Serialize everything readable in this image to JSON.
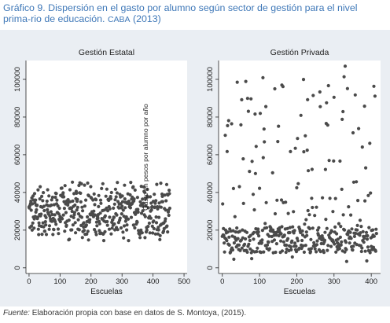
{
  "caption": {
    "label": "Gráfico 9.",
    "text": "Dispersión en el gasto por alumno según sector de gestión para el nivel prima-rio de educación.",
    "place": "CABA",
    "year": "(2013)"
  },
  "source": {
    "prefix": "Fuente:",
    "text": "Elaboración propia con base en datos de S. Montoya, (2015)."
  },
  "colors": {
    "points": "#4a4a4a",
    "panel_background": "#ffffff",
    "figure_background": "#eaeef3",
    "caption": "#3f78b8"
  },
  "chart_data": {
    "type": "scatter",
    "ylabel": "Gasto en pesos por alumno por año",
    "grid": false,
    "panels": [
      {
        "title": "Gestión Estatal",
        "xlabel": "Escuelas",
        "xticks": [
          0,
          100,
          200,
          300,
          400,
          500
        ],
        "yticks": [
          0,
          20000,
          40000,
          60000,
          80000,
          100000
        ],
        "xlim": [
          -10,
          510
        ],
        "ylim": [
          -3000,
          110000
        ],
        "n_points": 455,
        "y_range": [
          14000,
          45500
        ],
        "note": "points spread roughly uniformly between ~17000 and ~40000, few above 42000"
      },
      {
        "title": "Gestión Privada",
        "xlabel": "Escuelas",
        "xticks": [
          0,
          100,
          200,
          300,
          400
        ],
        "yticks": [
          0,
          20000,
          40000,
          60000,
          80000,
          100000
        ],
        "xlim": [
          -10,
          425
        ],
        "ylim": [
          -3000,
          110000
        ],
        "n_points": 415,
        "y_range": [
          3000,
          107000
        ],
        "note": "dense cluster ~8000-22000, scattered high values up to ~107000"
      }
    ]
  }
}
